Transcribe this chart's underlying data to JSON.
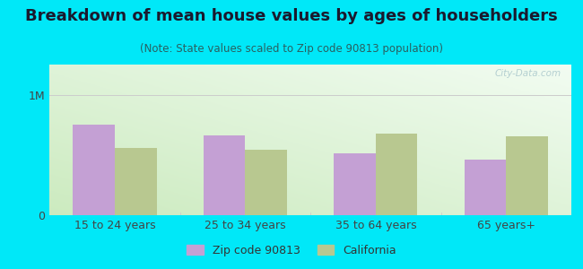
{
  "title": "Breakdown of mean house values by ages of householders",
  "subtitle": "(Note: State values scaled to Zip code 90813 population)",
  "categories": [
    "15 to 24 years",
    "25 to 34 years",
    "35 to 64 years",
    "65 years+"
  ],
  "zip_values": [
    750000,
    660000,
    510000,
    460000
  ],
  "ca_values": [
    560000,
    545000,
    680000,
    655000
  ],
  "zip_color": "#c4a0d4",
  "ca_color": "#b8c890",
  "background_outer": "#00e8f8",
  "yticks": [
    0,
    1000000
  ],
  "ytick_labels": [
    "0",
    "1M"
  ],
  "ylim": [
    0,
    1250000
  ],
  "bar_width": 0.32,
  "legend_zip": "Zip code 90813",
  "legend_ca": "California",
  "watermark": "City-Data.com",
  "title_fontsize": 13,
  "subtitle_fontsize": 8.5,
  "tick_fontsize": 9,
  "legend_fontsize": 9
}
